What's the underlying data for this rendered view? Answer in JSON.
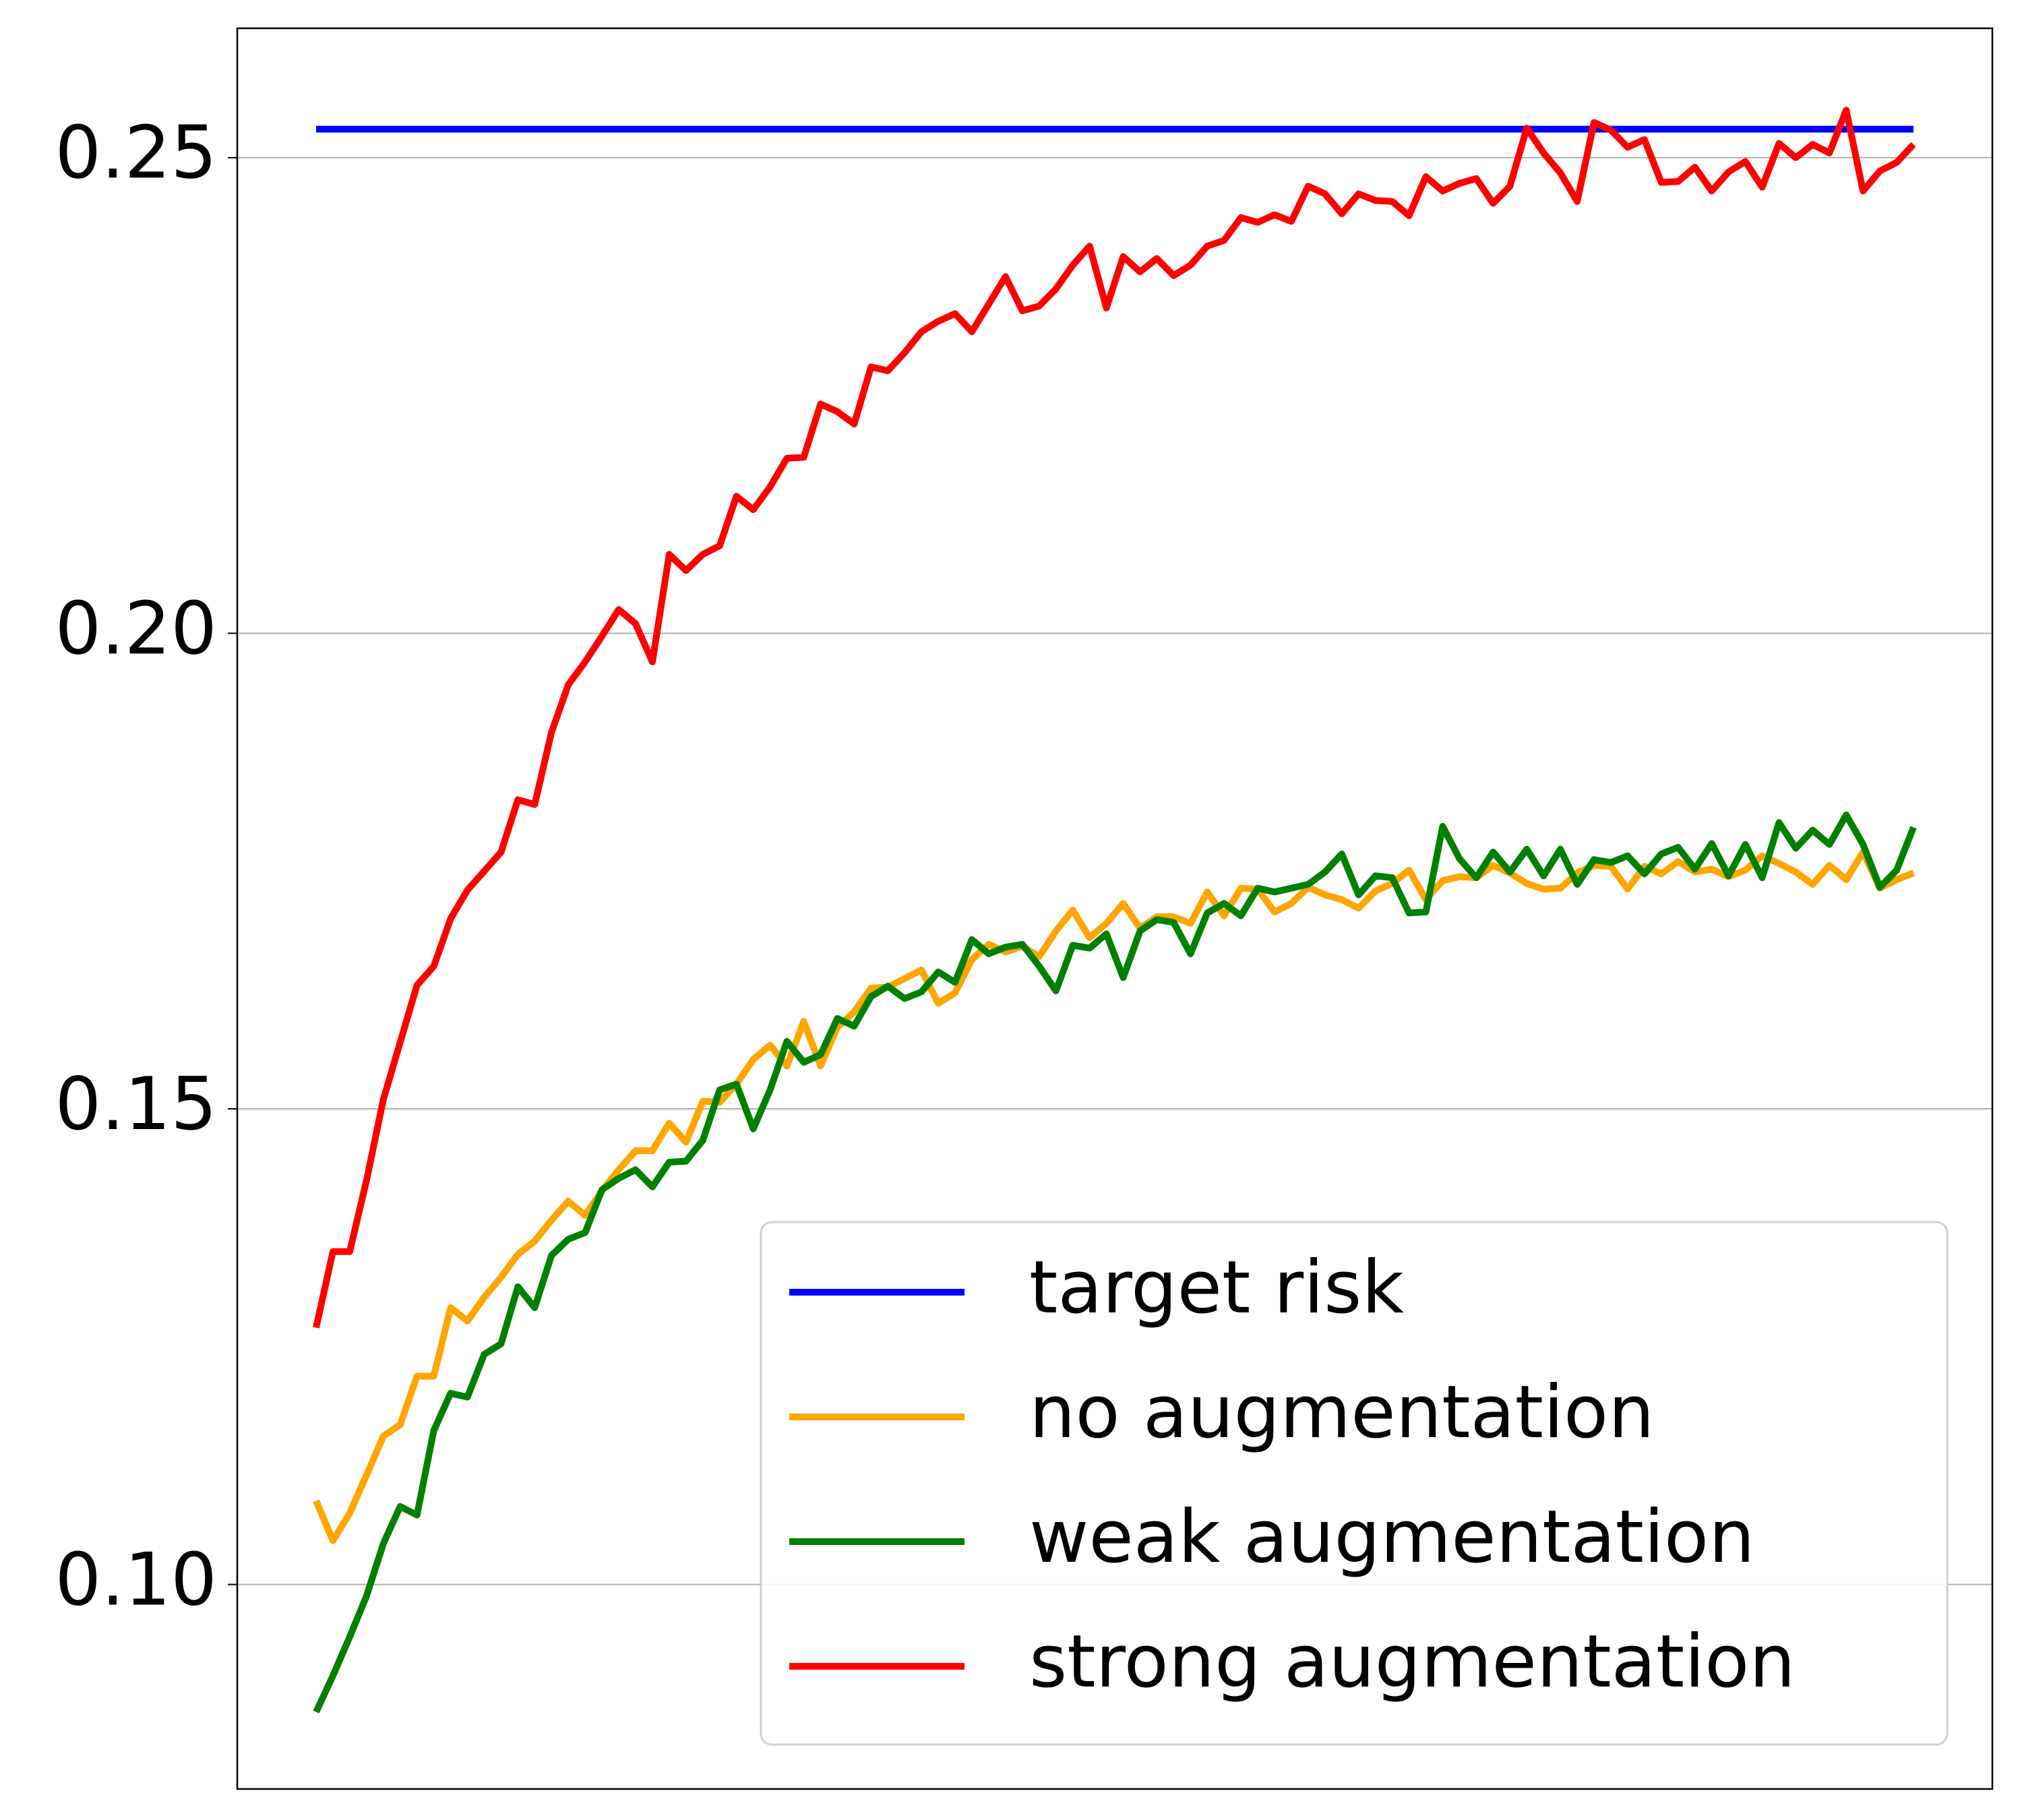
{
  "chart_data": {
    "type": "line",
    "ylim": [
      0.0785,
      0.2636
    ],
    "yticks": [
      {
        "value": 0.1,
        "label": "0.10"
      },
      0.15,
      {
        "value": 0.2,
        "label": "0.20"
      },
      0.25
    ],
    "grid": "y",
    "legend": "lower right",
    "series": [
      {
        "name": "target risk",
        "color": "#0000ff",
        "values": [
          0.253,
          0.253,
          0.253,
          0.253,
          0.253,
          0.253,
          0.253,
          0.253,
          0.253,
          0.253,
          0.253,
          0.253,
          0.253,
          0.253,
          0.253,
          0.253,
          0.253,
          0.253,
          0.253,
          0.253,
          0.253,
          0.253,
          0.253,
          0.253,
          0.253,
          0.253,
          0.253,
          0.253,
          0.253,
          0.253,
          0.253,
          0.253,
          0.253,
          0.253,
          0.253,
          0.253,
          0.253,
          0.253,
          0.253,
          0.253,
          0.253,
          0.253,
          0.253,
          0.253,
          0.253,
          0.253,
          0.253,
          0.253,
          0.253,
          0.253,
          0.253,
          0.253,
          0.253,
          0.253,
          0.253,
          0.253,
          0.253,
          0.253,
          0.253,
          0.253,
          0.253,
          0.253,
          0.253,
          0.253,
          0.253,
          0.253,
          0.253,
          0.253,
          0.253,
          0.253,
          0.253,
          0.253,
          0.253,
          0.253,
          0.253,
          0.253,
          0.253,
          0.253,
          0.253,
          0.253,
          0.253,
          0.253,
          0.253,
          0.253,
          0.253,
          0.253,
          0.253,
          0.253,
          0.253,
          0.253,
          0.253,
          0.253,
          0.253,
          0.253,
          0.253,
          0.253
        ]
      },
      {
        "name": "no augmentation",
        "color": "#ffa500",
        "values": [
          0.1088,
          0.1046,
          0.1075,
          0.1115,
          0.1156,
          0.1168,
          0.1219,
          0.1219,
          0.1291,
          0.1277,
          0.1302,
          0.1323,
          0.1347,
          0.1361,
          0.1383,
          0.1403,
          0.1388,
          0.1414,
          0.1436,
          0.1456,
          0.1456,
          0.1485,
          0.1465,
          0.1508,
          0.1507,
          0.1526,
          0.1552,
          0.1567,
          0.1545,
          0.1592,
          0.1545,
          0.1586,
          0.1602,
          0.1627,
          0.1628,
          0.1637,
          0.1646,
          0.1611,
          0.1622,
          0.1657,
          0.1673,
          0.1665,
          0.1671,
          0.166,
          0.1687,
          0.1709,
          0.168,
          0.1695,
          0.1716,
          0.169,
          0.1702,
          0.1702,
          0.1695,
          0.1728,
          0.1703,
          0.1732,
          0.1731,
          0.1707,
          0.1716,
          0.1733,
          0.1725,
          0.172,
          0.1711,
          0.1729,
          0.1737,
          0.1751,
          0.172,
          0.174,
          0.1744,
          0.1743,
          0.1756,
          0.1748,
          0.1737,
          0.1731,
          0.1732,
          0.1748,
          0.1756,
          0.1755,
          0.1731,
          0.1755,
          0.1747,
          0.176,
          0.1749,
          0.1752,
          0.1744,
          0.1751,
          0.1766,
          0.1758,
          0.1749,
          0.1736,
          0.1756,
          0.1741,
          0.177,
          0.1732,
          0.1741,
          0.1748
        ]
      },
      {
        "name": "weak augmentation",
        "color": "#008000",
        "values": [
          0.0866,
          0.0904,
          0.0945,
          0.0988,
          0.1043,
          0.1082,
          0.1073,
          0.1162,
          0.1201,
          0.1197,
          0.1242,
          0.1253,
          0.1313,
          0.1291,
          0.1346,
          0.1363,
          0.137,
          0.1415,
          0.1427,
          0.1436,
          0.1418,
          0.1444,
          0.1445,
          0.1467,
          0.152,
          0.1526,
          0.1479,
          0.152,
          0.1571,
          0.1549,
          0.1557,
          0.1595,
          0.1587,
          0.1618,
          0.1629,
          0.1616,
          0.1623,
          0.1644,
          0.1633,
          0.1678,
          0.1663,
          0.167,
          0.1673,
          0.165,
          0.1624,
          0.1672,
          0.1669,
          0.1684,
          0.1638,
          0.1687,
          0.1699,
          0.1696,
          0.1663,
          0.1706,
          0.1716,
          0.1703,
          0.1732,
          0.1728,
          0.1732,
          0.1736,
          0.1749,
          0.1768,
          0.1725,
          0.1745,
          0.1743,
          0.1706,
          0.1707,
          0.1797,
          0.1763,
          0.1743,
          0.177,
          0.1749,
          0.1773,
          0.1745,
          0.1773,
          0.1736,
          0.1762,
          0.1759,
          0.1766,
          0.1747,
          0.1768,
          0.1775,
          0.1752,
          0.1779,
          0.1745,
          0.1778,
          0.1743,
          0.1801,
          0.1774,
          0.1793,
          0.1778,
          0.1809,
          0.1778,
          0.1733,
          0.1751,
          0.1796
        ]
      },
      {
        "name": "strong augmentation",
        "color": "#ff0000",
        "values": [
          0.127,
          0.135,
          0.135,
          0.1425,
          0.151,
          0.157,
          0.163,
          0.165,
          0.17,
          0.173,
          0.175,
          0.177,
          0.1825,
          0.182,
          0.1896,
          0.1946,
          0.197,
          0.1997,
          0.2025,
          0.201,
          0.197,
          0.2083,
          0.2066,
          0.2083,
          0.2092,
          0.2144,
          0.213,
          0.2154,
          0.2184,
          0.2185,
          0.2241,
          0.2233,
          0.222,
          0.228,
          0.2276,
          0.2295,
          0.2317,
          0.2328,
          0.2336,
          0.2317,
          0.2346,
          0.2375,
          0.2339,
          0.2344,
          0.2362,
          0.2387,
          0.2407,
          0.2342,
          0.2396,
          0.238,
          0.2394,
          0.2376,
          0.2387,
          0.2407,
          0.2413,
          0.2437,
          0.2432,
          0.244,
          0.2433,
          0.247,
          0.2462,
          0.2441,
          0.2462,
          0.2455,
          0.2454,
          0.2439,
          0.248,
          0.2465,
          0.2473,
          0.2478,
          0.2452,
          0.247,
          0.2531,
          0.2505,
          0.2484,
          0.2454,
          0.2537,
          0.2529,
          0.2511,
          0.2519,
          0.2474,
          0.2475,
          0.249,
          0.2465,
          0.2485,
          0.2496,
          0.2469,
          0.2515,
          0.25,
          0.2514,
          0.2505,
          0.255,
          0.2465,
          0.2486,
          0.2495,
          0.2514
        ]
      }
    ]
  }
}
